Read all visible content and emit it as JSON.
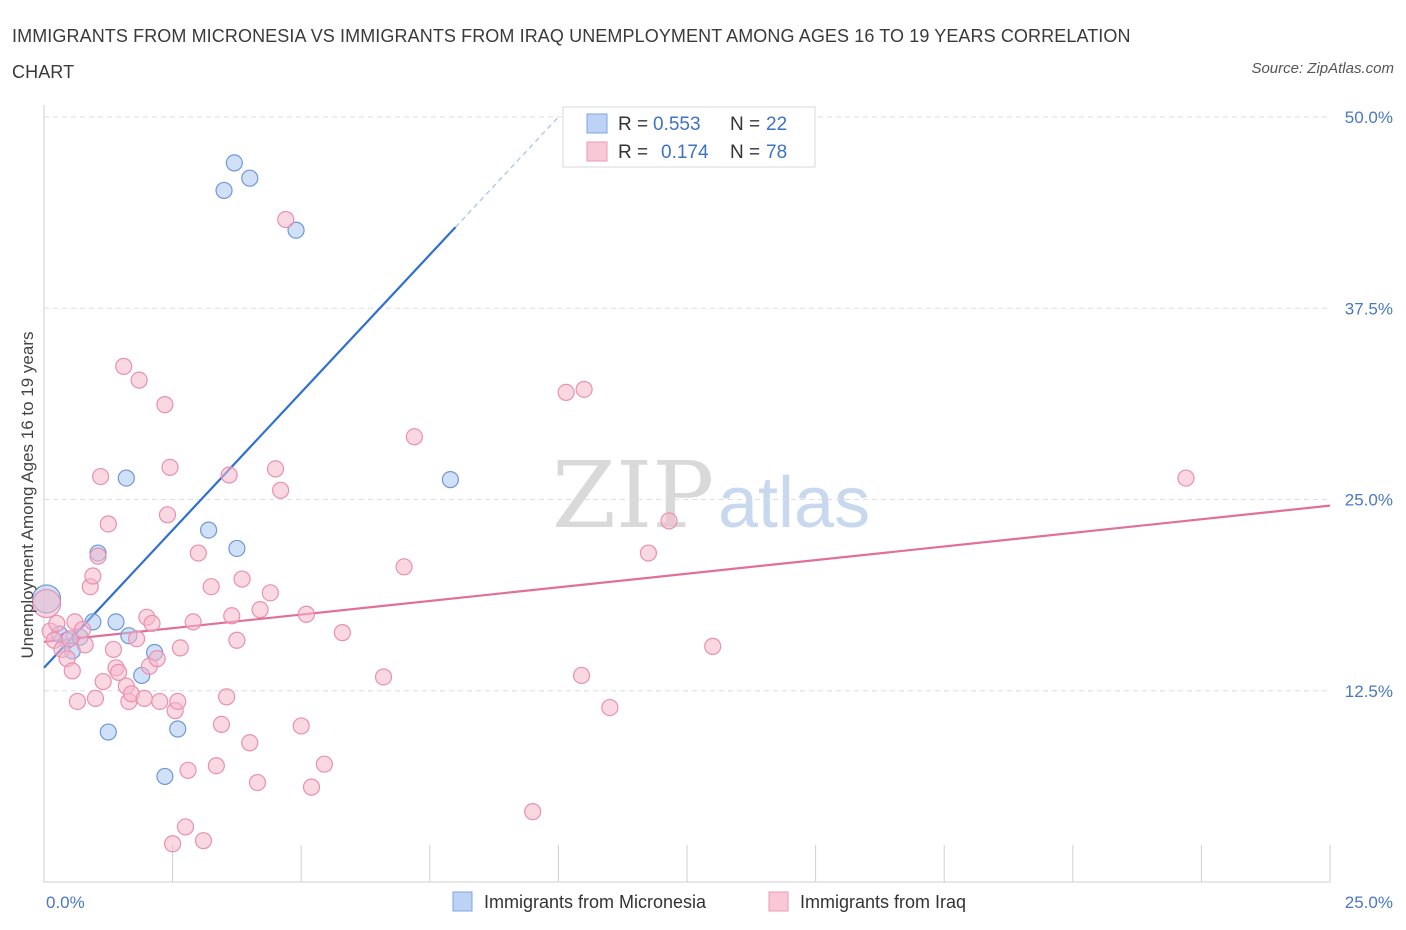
{
  "title": "IMMIGRANTS FROM MICRONESIA VS IMMIGRANTS FROM IRAQ UNEMPLOYMENT AMONG AGES 16 TO 19 YEARS CORRELATION CHART",
  "source": "Source: ZipAtlas.com",
  "watermark": {
    "part1": "ZIP",
    "part2": "atlas"
  },
  "legend": {
    "r_label": "R =",
    "n_label": "N =",
    "rows": [
      {
        "r": "0.553",
        "n": "22"
      },
      {
        "r": "0.174",
        "n": "78"
      }
    ]
  },
  "chart_data": {
    "type": "scatter",
    "title": "IMMIGRANTS FROM MICRONESIA VS IMMIGRANTS FROM IRAQ UNEMPLOYMENT AMONG AGES 16 TO 19 YEARS CORRELATION CHART",
    "xlabel": "",
    "ylabel": "Unemployment Among Ages 16 to 19 years",
    "xlim": [
      0,
      25
    ],
    "ylim": [
      0,
      50
    ],
    "x_tick_labels": [
      "0.0%",
      "25.0%"
    ],
    "y_ticks": [
      12.5,
      25.0,
      37.5,
      50.0
    ],
    "y_tick_labels": [
      "12.5%",
      "25.0%",
      "37.5%",
      "50.0%"
    ],
    "grid": true,
    "legend_position": "top-center",
    "colors": {
      "micronesia": "#a9c6f0",
      "micronesia_line": "#2f6fd0",
      "iraq": "#f5b8cb",
      "iraq_line": "#e0709a"
    },
    "series": [
      {
        "name": "Immigrants from Micronesia",
        "r": 0.553,
        "n": 22,
        "trend": {
          "x": [
            0,
            8
          ],
          "y": [
            14.0,
            42.8
          ],
          "dashed_to": [
            10,
            50.0
          ]
        },
        "points": [
          {
            "x": 0.05,
            "y": 18.5
          },
          {
            "x": 0.3,
            "y": 16.2
          },
          {
            "x": 0.45,
            "y": 15.8
          },
          {
            "x": 0.55,
            "y": 15.1
          },
          {
            "x": 0.7,
            "y": 16.0
          },
          {
            "x": 0.95,
            "y": 17.0
          },
          {
            "x": 1.05,
            "y": 21.5
          },
          {
            "x": 1.25,
            "y": 9.8
          },
          {
            "x": 1.4,
            "y": 17.0
          },
          {
            "x": 1.6,
            "y": 26.4
          },
          {
            "x": 1.65,
            "y": 16.1
          },
          {
            "x": 1.9,
            "y": 13.5
          },
          {
            "x": 2.15,
            "y": 15.0
          },
          {
            "x": 2.35,
            "y": 6.9
          },
          {
            "x": 2.6,
            "y": 10.0
          },
          {
            "x": 3.2,
            "y": 23.0
          },
          {
            "x": 3.5,
            "y": 45.2
          },
          {
            "x": 3.7,
            "y": 47.0
          },
          {
            "x": 3.75,
            "y": 21.8
          },
          {
            "x": 4.0,
            "y": 46.0
          },
          {
            "x": 4.9,
            "y": 42.6
          },
          {
            "x": 7.9,
            "y": 26.3
          }
        ]
      },
      {
        "name": "Immigrants from Iraq",
        "r": 0.174,
        "n": 78,
        "trend": {
          "x": [
            0,
            25
          ],
          "y": [
            15.7,
            24.6
          ]
        },
        "points": [
          {
            "x": 0.05,
            "y": 18.2
          },
          {
            "x": 0.12,
            "y": 16.4
          },
          {
            "x": 0.2,
            "y": 15.8
          },
          {
            "x": 0.25,
            "y": 16.9
          },
          {
            "x": 0.35,
            "y": 15.2
          },
          {
            "x": 0.45,
            "y": 14.6
          },
          {
            "x": 0.5,
            "y": 15.9
          },
          {
            "x": 0.55,
            "y": 13.8
          },
          {
            "x": 0.6,
            "y": 17.0
          },
          {
            "x": 0.65,
            "y": 11.8
          },
          {
            "x": 0.75,
            "y": 16.5
          },
          {
            "x": 0.8,
            "y": 15.5
          },
          {
            "x": 0.9,
            "y": 19.3
          },
          {
            "x": 0.95,
            "y": 20.0
          },
          {
            "x": 1.0,
            "y": 12.0
          },
          {
            "x": 1.05,
            "y": 21.3
          },
          {
            "x": 1.1,
            "y": 26.5
          },
          {
            "x": 1.15,
            "y": 13.1
          },
          {
            "x": 1.25,
            "y": 23.4
          },
          {
            "x": 1.35,
            "y": 15.2
          },
          {
            "x": 1.4,
            "y": 14.0
          },
          {
            "x": 1.45,
            "y": 13.7
          },
          {
            "x": 1.55,
            "y": 33.7
          },
          {
            "x": 1.6,
            "y": 12.8
          },
          {
            "x": 1.65,
            "y": 11.8
          },
          {
            "x": 1.7,
            "y": 12.3
          },
          {
            "x": 1.8,
            "y": 15.9
          },
          {
            "x": 1.85,
            "y": 32.8
          },
          {
            "x": 1.95,
            "y": 12.0
          },
          {
            "x": 2.0,
            "y": 17.3
          },
          {
            "x": 2.05,
            "y": 14.1
          },
          {
            "x": 2.1,
            "y": 16.9
          },
          {
            "x": 2.2,
            "y": 14.6
          },
          {
            "x": 2.25,
            "y": 11.8
          },
          {
            "x": 2.35,
            "y": 31.2
          },
          {
            "x": 2.4,
            "y": 24.0
          },
          {
            "x": 2.45,
            "y": 27.1
          },
          {
            "x": 2.5,
            "y": 2.5
          },
          {
            "x": 2.55,
            "y": 11.2
          },
          {
            "x": 2.6,
            "y": 11.8
          },
          {
            "x": 2.65,
            "y": 15.3
          },
          {
            "x": 2.75,
            "y": 3.6
          },
          {
            "x": 2.8,
            "y": 7.3
          },
          {
            "x": 2.9,
            "y": 17.0
          },
          {
            "x": 3.0,
            "y": 21.5
          },
          {
            "x": 3.1,
            "y": 2.7
          },
          {
            "x": 3.25,
            "y": 19.3
          },
          {
            "x": 3.35,
            "y": 7.6
          },
          {
            "x": 3.45,
            "y": 10.3
          },
          {
            "x": 3.55,
            "y": 12.1
          },
          {
            "x": 3.6,
            "y": 26.6
          },
          {
            "x": 3.65,
            "y": 17.4
          },
          {
            "x": 3.75,
            "y": 15.8
          },
          {
            "x": 3.85,
            "y": 19.8
          },
          {
            "x": 4.0,
            "y": 9.1
          },
          {
            "x": 4.15,
            "y": 6.5
          },
          {
            "x": 4.2,
            "y": 17.8
          },
          {
            "x": 4.4,
            "y": 18.9
          },
          {
            "x": 4.5,
            "y": 27.0
          },
          {
            "x": 4.6,
            "y": 25.6
          },
          {
            "x": 4.7,
            "y": 43.3
          },
          {
            "x": 5.0,
            "y": 10.2
          },
          {
            "x": 5.1,
            "y": 17.5
          },
          {
            "x": 5.2,
            "y": 6.2
          },
          {
            "x": 5.45,
            "y": 7.7
          },
          {
            "x": 5.8,
            "y": 16.3
          },
          {
            "x": 6.6,
            "y": 13.4
          },
          {
            "x": 7.0,
            "y": 20.6
          },
          {
            "x": 7.2,
            "y": 29.1
          },
          {
            "x": 9.5,
            "y": 4.6
          },
          {
            "x": 10.15,
            "y": 32.0
          },
          {
            "x": 10.45,
            "y": 13.5
          },
          {
            "x": 10.5,
            "y": 32.2
          },
          {
            "x": 11.0,
            "y": 11.4
          },
          {
            "x": 11.75,
            "y": 21.5
          },
          {
            "x": 12.15,
            "y": 23.6
          },
          {
            "x": 13.0,
            "y": 15.4
          },
          {
            "x": 22.2,
            "y": 26.4
          }
        ]
      }
    ]
  }
}
